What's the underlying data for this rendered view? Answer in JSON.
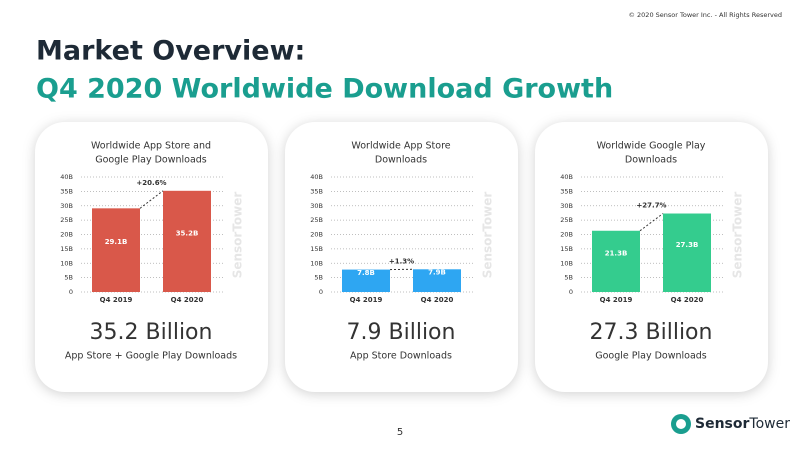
{
  "header": {
    "copyright": "© 2020 Sensor Tower Inc. - All Rights Reserved",
    "title": "Market Overview:",
    "subtitle": "Q4 2020 Worldwide Download Growth"
  },
  "chart_data": [
    {
      "type": "bar",
      "title": [
        "Worldwide App Store and",
        "Google Play Downloads"
      ],
      "categories": [
        "Q4 2019",
        "Q4 2020"
      ],
      "values": [
        29.1,
        35.2
      ],
      "value_labels": [
        "29.1B",
        "35.2B"
      ],
      "color": "#d9584a",
      "ylim": [
        0,
        40
      ],
      "yticks": [
        0,
        {
          "value": 5,
          "label": "5B"
        },
        {
          "value": 10,
          "label": "10B"
        },
        {
          "value": 15,
          "label": "15B"
        },
        {
          "value": 20,
          "label": "20B"
        },
        {
          "value": 25,
          "label": "25B"
        },
        {
          "value": 30,
          "label": "30B"
        },
        {
          "value": 35,
          "label": "35B"
        },
        {
          "value": 40,
          "label": "40B"
        }
      ],
      "grid": true,
      "annotation": "+20.6%",
      "headline": "35.2 Billion",
      "caption": "App Store + Google Play Downloads"
    },
    {
      "type": "bar",
      "title": [
        "Worldwide App Store",
        "Downloads"
      ],
      "categories": [
        "Q4 2019",
        "Q4 2020"
      ],
      "values": [
        7.8,
        7.9
      ],
      "value_labels": [
        "7.8B",
        "7.9B"
      ],
      "color": "#2ea6f2",
      "ylim": [
        0,
        40
      ],
      "yticks": [
        0,
        {
          "value": 5,
          "label": "5B"
        },
        {
          "value": 10,
          "label": "10B"
        },
        {
          "value": 15,
          "label": "15B"
        },
        {
          "value": 20,
          "label": "20B"
        },
        {
          "value": 25,
          "label": "25B"
        },
        {
          "value": 30,
          "label": "30B"
        },
        {
          "value": 35,
          "label": "35B"
        },
        {
          "value": 40,
          "label": "40B"
        }
      ],
      "grid": true,
      "annotation": "+1.3%",
      "headline": "7.9 Billion",
      "caption": "App Store Downloads"
    },
    {
      "type": "bar",
      "title": [
        "Worldwide Google Play",
        "Downloads"
      ],
      "categories": [
        "Q4 2019",
        "Q4 2020"
      ],
      "values": [
        21.3,
        27.3
      ],
      "value_labels": [
        "21.3B",
        "27.3B"
      ],
      "color": "#34cc8e",
      "ylim": [
        0,
        40
      ],
      "yticks": [
        0,
        {
          "value": 5,
          "label": "5B"
        },
        {
          "value": 10,
          "label": "10B"
        },
        {
          "value": 15,
          "label": "15B"
        },
        {
          "value": 20,
          "label": "20B"
        },
        {
          "value": 25,
          "label": "25B"
        },
        {
          "value": 30,
          "label": "30B"
        },
        {
          "value": 35,
          "label": "35B"
        },
        {
          "value": 40,
          "label": "40B"
        }
      ],
      "grid": true,
      "annotation": "+27.7%",
      "headline": "27.3 Billion",
      "caption": "Google Play Downloads"
    }
  ],
  "watermark": "SensorTower",
  "footer": {
    "page": "5",
    "logo_bold": "Sensor",
    "logo_regular": "Tower"
  }
}
